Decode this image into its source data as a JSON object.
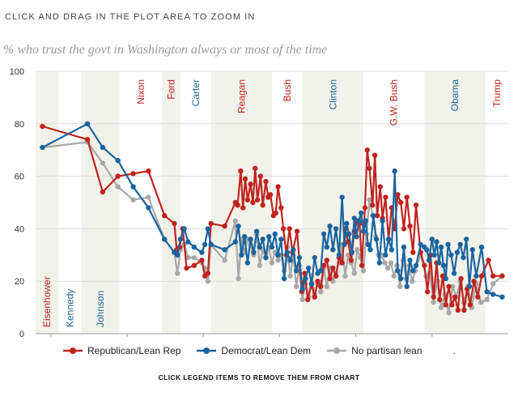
{
  "header": {
    "hint": "CLICK AND DRAG IN THE PLOT AREA TO ZOOM IN"
  },
  "footnote": "CLICK LEGEND ITEMS TO REMOVE THEM FROM CHART",
  "chart_data": {
    "type": "line",
    "title": "% who trust the govt in Washington always or most of the time",
    "xlabel": "",
    "ylabel": "",
    "xlim": [
      1958,
      2020
    ],
    "ylim": [
      0,
      100
    ],
    "x_ticks": [
      1960,
      1970,
      1980,
      1990,
      2000,
      2010
    ],
    "y_ticks": [
      0,
      20,
      40,
      60,
      80,
      100
    ],
    "grid": "horizontal",
    "legend_position": "bottom",
    "legend_trailing_mark": ".",
    "presidents": [
      {
        "name": "Eisenhower",
        "start": 1958,
        "end": 1961,
        "party": "R",
        "shaded": true,
        "label_position": "bottom"
      },
      {
        "name": "Kennedy",
        "start": 1961,
        "end": 1964,
        "party": "D",
        "shaded": false,
        "label_position": "bottom"
      },
      {
        "name": "Johnson",
        "start": 1964,
        "end": 1969,
        "party": "D",
        "shaded": true,
        "label_position": "bottom"
      },
      {
        "name": "Nixon",
        "start": 1969,
        "end": 1974.6,
        "party": "R",
        "shaded": false,
        "label_position": "top"
      },
      {
        "name": "Ford",
        "start": 1974.6,
        "end": 1977,
        "party": "R",
        "shaded": true,
        "label_position": "top"
      },
      {
        "name": "Carter",
        "start": 1977,
        "end": 1981,
        "party": "D",
        "shaded": false,
        "label_position": "top"
      },
      {
        "name": "Reagan",
        "start": 1981,
        "end": 1989,
        "party": "R",
        "shaded": true,
        "label_position": "top"
      },
      {
        "name": "Bush",
        "start": 1989,
        "end": 1993,
        "party": "R",
        "shaded": false,
        "label_position": "top"
      },
      {
        "name": "Clinton",
        "start": 1993,
        "end": 2001,
        "party": "D",
        "shaded": true,
        "label_position": "top"
      },
      {
        "name": "G.W. Bush",
        "start": 2001,
        "end": 2009,
        "party": "R",
        "shaded": false,
        "label_position": "top"
      },
      {
        "name": "Obama",
        "start": 2009,
        "end": 2017,
        "party": "D",
        "shaded": true,
        "label_position": "top"
      },
      {
        "name": "Trump",
        "start": 2017,
        "end": 2020,
        "party": "R",
        "shaded": false,
        "label_position": "top"
      }
    ],
    "colors": {
      "republican": "#c0231d",
      "democrat": "#1a649f",
      "independent": "#a8a8a8",
      "shade": "#f2f2ea",
      "president_R": "#c0231d",
      "president_D": "#1a649f"
    },
    "series": [
      {
        "name": "Republican/Lean Rep",
        "color": "#c0231d",
        "x": [
          1958.9,
          1964.8,
          1966.8,
          1968.8,
          1970.8,
          1972.8,
          1974.9,
          1976.2,
          1976.5,
          1976.9,
          1977.3,
          1977.8,
          1978.8,
          1979.8,
          1980.2,
          1980.6,
          1981.0,
          1982.8,
          1984.2,
          1984.5,
          1984.9,
          1985.2,
          1985.5,
          1985.8,
          1986.2,
          1986.5,
          1986.8,
          1987.1,
          1987.5,
          1987.8,
          1988.2,
          1988.5,
          1988.8,
          1989.2,
          1989.5,
          1989.8,
          1990.2,
          1990.5,
          1990.9,
          1991.3,
          1991.7,
          1992.3,
          1992.9,
          1993.3,
          1993.7,
          1994.2,
          1994.6,
          1995.0,
          1995.4,
          1995.8,
          1996.2,
          1996.6,
          1997.0,
          1997.4,
          1997.8,
          1998.2,
          1998.6,
          1999.0,
          1999.4,
          1999.8,
          2000.2,
          2000.5,
          2000.8,
          2001.2,
          2001.5,
          2001.8,
          2002.2,
          2002.5,
          2002.8,
          2003.2,
          2003.5,
          2003.9,
          2004.3,
          2004.7,
          2005.1,
          2005.5,
          2005.9,
          2006.3,
          2006.7,
          2007.1,
          2007.5,
          2007.9,
          2008.5,
          2009.0,
          2009.4,
          2009.8,
          2010.2,
          2010.6,
          2011.0,
          2011.4,
          2011.8,
          2012.2,
          2012.6,
          2013.0,
          2013.4,
          2013.8,
          2014.2,
          2014.6,
          2015.0,
          2015.5,
          2016.0,
          2016.5,
          2017.4,
          2018.0,
          2019.2
        ],
        "y": [
          79,
          74,
          54,
          60,
          61,
          62,
          45,
          42,
          32,
          33,
          40,
          25,
          26,
          28,
          22,
          23,
          42,
          41,
          50,
          49,
          62,
          48,
          59,
          51,
          57,
          50,
          63,
          51,
          60,
          49,
          58,
          52,
          53,
          45,
          46,
          56,
          48,
          40,
          30,
          40,
          31,
          39,
          16,
          23,
          13,
          19,
          14,
          20,
          18,
          26,
          28,
          21,
          25,
          22,
          29,
          27,
          40,
          35,
          28,
          39,
          43,
          42,
          26,
          48,
          70,
          63,
          49,
          68,
          45,
          56,
          44,
          52,
          36,
          48,
          40,
          53,
          50,
          40,
          52,
          41,
          31,
          49,
          31,
          26,
          16,
          30,
          14,
          27,
          13,
          22,
          11,
          18,
          11,
          14,
          9,
          21,
          9,
          17,
          11,
          20,
          14,
          22,
          28,
          22,
          22
        ]
      },
      {
        "name": "Democrat/Lean Dem",
        "color": "#1a649f",
        "x": [
          1958.9,
          1964.8,
          1966.8,
          1968.8,
          1970.8,
          1972.8,
          1974.9,
          1976.2,
          1976.6,
          1977.0,
          1977.5,
          1978.0,
          1978.8,
          1979.8,
          1980.2,
          1980.6,
          1981.0,
          1982.8,
          1984.2,
          1984.6,
          1985.0,
          1985.4,
          1985.8,
          1986.2,
          1986.6,
          1987.0,
          1987.4,
          1987.8,
          1988.2,
          1988.6,
          1989.0,
          1989.4,
          1989.8,
          1990.2,
          1990.6,
          1991.0,
          1991.4,
          1991.8,
          1992.2,
          1992.6,
          1993.0,
          1993.4,
          1993.8,
          1994.2,
          1994.6,
          1995.0,
          1995.4,
          1995.8,
          1996.2,
          1996.6,
          1997.0,
          1997.4,
          1997.8,
          1998.2,
          1998.5,
          1998.8,
          1999.1,
          1999.5,
          1999.8,
          2000.1,
          2000.4,
          2000.7,
          2001.0,
          2001.3,
          2001.6,
          2001.9,
          2002.3,
          2002.7,
          2003.1,
          2003.5,
          2003.9,
          2004.3,
          2004.7,
          2005.1,
          2005.5,
          2005.9,
          2006.3,
          2006.7,
          2007.1,
          2007.5,
          2007.9,
          2008.5,
          2009.0,
          2009.3,
          2009.6,
          2010.0,
          2010.3,
          2010.6,
          2010.9,
          2011.2,
          2011.5,
          2011.8,
          2012.1,
          2012.5,
          2012.9,
          2013.3,
          2013.7,
          2014.1,
          2014.5,
          2014.9,
          2015.3,
          2015.8,
          2016.5,
          2017.2,
          2018.0,
          2019.2
        ],
        "y": [
          71,
          80,
          71,
          66,
          56,
          48,
          36,
          31,
          30,
          36,
          40,
          35,
          33,
          31,
          34,
          40,
          34,
          32,
          35,
          41,
          30,
          37,
          27,
          36,
          31,
          39,
          33,
          36,
          29,
          37,
          33,
          38,
          30,
          36,
          21,
          31,
          28,
          32,
          24,
          29,
          17,
          21,
          25,
          19,
          29,
          23,
          24,
          38,
          33,
          41,
          32,
          40,
          30,
          52,
          34,
          42,
          38,
          31,
          44,
          37,
          43,
          46,
          39,
          43,
          34,
          32,
          45,
          36,
          27,
          43,
          30,
          36,
          32,
          62,
          24,
          21,
          33,
          18,
          28,
          24,
          26,
          34,
          33,
          32,
          28,
          36,
          30,
          35,
          27,
          33,
          26,
          21,
          34,
          30,
          23,
          31,
          34,
          29,
          36,
          18,
          32,
          22,
          33,
          16,
          15,
          14
        ]
      },
      {
        "name": "No partisan lean",
        "color": "#a8a8a8",
        "x": [
          1958.9,
          1964.8,
          1966.8,
          1968.8,
          1970.8,
          1972.8,
          1974.9,
          1976.2,
          1976.6,
          1977.0,
          1977.5,
          1978.0,
          1978.8,
          1979.8,
          1980.2,
          1980.6,
          1981.0,
          1982.8,
          1984.2,
          1984.6,
          1985.0,
          1985.4,
          1985.8,
          1986.2,
          1986.6,
          1987.0,
          1987.4,
          1987.8,
          1988.2,
          1988.6,
          1989.0,
          1989.4,
          1989.8,
          1990.2,
          1990.6,
          1991.0,
          1991.4,
          1991.8,
          1992.2,
          1992.6,
          1993.0,
          1993.4,
          1993.8,
          1994.2,
          1994.6,
          1995.0,
          1995.4,
          1995.8,
          1996.2,
          1996.6,
          1997.0,
          1997.4,
          1997.8,
          1998.2,
          1998.6,
          1999.0,
          1999.4,
          1999.8,
          2000.2,
          2000.6,
          2001.0,
          2001.4,
          2001.8,
          2002.2,
          2002.6,
          2003.0,
          2003.4,
          2003.8,
          2004.2,
          2004.6,
          2005.0,
          2005.4,
          2005.8,
          2006.2,
          2006.6,
          2007.0,
          2007.4,
          2007.8,
          2008.5,
          2009.2,
          2009.7,
          2010.2,
          2010.7,
          2011.2,
          2011.7,
          2012.2,
          2012.7,
          2013.2,
          2013.7,
          2014.2,
          2014.7,
          2015.2,
          2015.8,
          2016.4,
          2017.2,
          2018.0,
          2019.2
        ],
        "y": [
          71,
          73,
          65,
          56,
          51,
          52,
          36,
          31,
          23,
          32,
          34,
          29,
          29,
          27,
          25,
          20,
          34,
          28,
          43,
          21,
          36,
          31,
          36,
          34,
          30,
          38,
          26,
          32,
          29,
          33,
          27,
          31,
          28,
          30,
          24,
          33,
          22,
          30,
          18,
          26,
          13,
          19,
          14,
          22,
          15,
          19,
          16,
          25,
          18,
          25,
          20,
          23,
          27,
          34,
          22,
          30,
          27,
          23,
          32,
          29,
          24,
          38,
          51,
          45,
          37,
          30,
          30,
          27,
          25,
          27,
          22,
          26,
          18,
          28,
          21,
          26,
          20,
          24,
          30,
          22,
          23,
          12,
          20,
          10,
          15,
          8,
          18,
          14,
          20,
          12,
          18,
          10,
          19,
          12,
          13,
          19,
          22
        ]
      }
    ]
  }
}
